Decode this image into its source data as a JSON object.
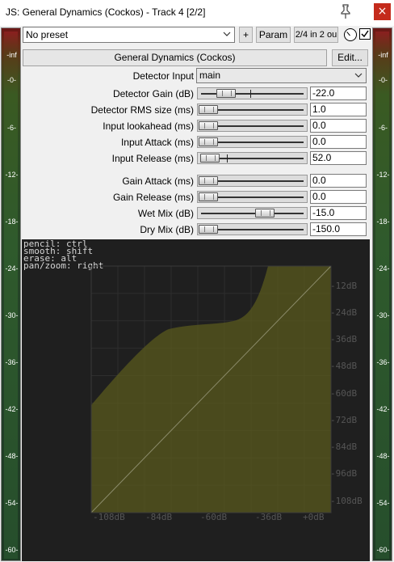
{
  "window": {
    "title": "JS: General Dynamics (Cockos) - Track 4 [2/2]",
    "close_glyph": "×"
  },
  "toolbar": {
    "preset_value": "No preset",
    "plus_label": "+",
    "param_label": "Param",
    "io_label": "2/4 in 2 ou"
  },
  "plugin": {
    "name": "General Dynamics (Cockos)",
    "edit_label": "Edit..."
  },
  "detector_input": {
    "label": "Detector Input",
    "value": "main"
  },
  "params": [
    {
      "label": "Detector Gain (dB)",
      "value": "-22.0",
      "pos": 0.2,
      "mark": 0.48
    },
    {
      "label": "Detector RMS size (ms)",
      "value": "1.0",
      "pos": 0.0
    },
    {
      "label": "Input lookahead (ms)",
      "value": "0.0",
      "pos": 0.0
    },
    {
      "label": "Input Attack (ms)",
      "value": "0.0",
      "pos": 0.0
    },
    {
      "label": "Input Release (ms)",
      "value": "52.0",
      "pos": 0.02,
      "mark": 0.25
    },
    {
      "label": "Gain Attack (ms)",
      "value": "0.0",
      "pos": 0.0
    },
    {
      "label": "Gain Release (ms)",
      "value": "0.0",
      "pos": 0.0
    },
    {
      "label": "Wet Mix (dB)",
      "value": "-15.0",
      "pos": 0.64
    },
    {
      "label": "Dry Mix (dB)",
      "value": "-150.0",
      "pos": 0.0
    }
  ],
  "meter_scale": [
    "-inf",
    "-0-",
    "-6-",
    "-12-",
    "-18-",
    "-24-",
    "-30-",
    "-36-",
    "-42-",
    "-48-",
    "-54-",
    "-60-"
  ],
  "graph": {
    "help_text": "pencil: ctrl\nsmooth: shift\nerase: alt\npan/zoom: right",
    "y_ticks": [
      "-12dB",
      "-24dB",
      "-36dB",
      "-48dB",
      "-60dB",
      "-72dB",
      "-84dB",
      "-96dB",
      "-108dB"
    ],
    "x_ticks": [
      "-108dB",
      "-84dB",
      "-60dB",
      "-36dB",
      "+0dB"
    ],
    "curve_color": "#5a5a1e",
    "line_color": "#8b8b6a"
  }
}
